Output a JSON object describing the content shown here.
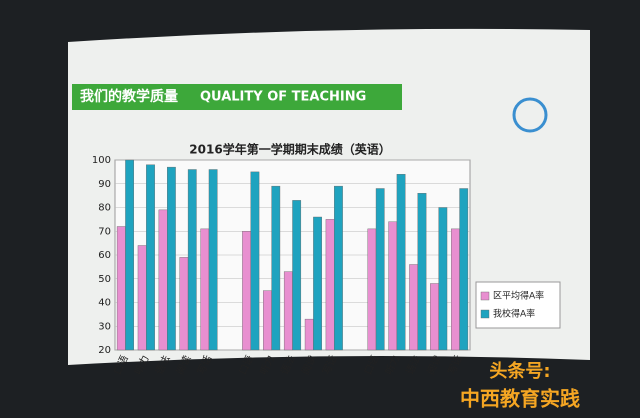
{
  "slide": {
    "header": "我们的教学质量",
    "header_en": "QUALITY OF TEACHING"
  },
  "watermark": {
    "line1": "头条号:",
    "line2": "中西教育实践"
  },
  "chart_data": {
    "type": "bar",
    "title": "2016学年第一学期期末成绩（英语）",
    "categories": [
      "口语",
      "听力",
      "语法",
      "阅读",
      "写话",
      null,
      "口语",
      "听力",
      "语法",
      "阅读",
      "写话",
      null,
      "口语",
      "听力",
      "语法",
      "阅读",
      "写话"
    ],
    "series": [
      {
        "name": "区平均得A率",
        "color": "#e88fd0",
        "values": [
          72,
          64,
          79,
          59,
          71,
          null,
          70,
          45,
          53,
          33,
          75,
          null,
          71,
          74,
          56,
          48,
          71
        ]
      },
      {
        "name": "我校得A率",
        "color": "#1fa3bf",
        "values": [
          100,
          98,
          97,
          96,
          96,
          null,
          95,
          89,
          83,
          76,
          89,
          null,
          88,
          94,
          86,
          80,
          88
        ]
      }
    ],
    "ylim": [
      20,
      100
    ],
    "yticks": [
      20,
      30,
      40,
      50,
      60,
      70,
      80,
      90,
      100
    ],
    "grid": true,
    "legend": "right"
  }
}
